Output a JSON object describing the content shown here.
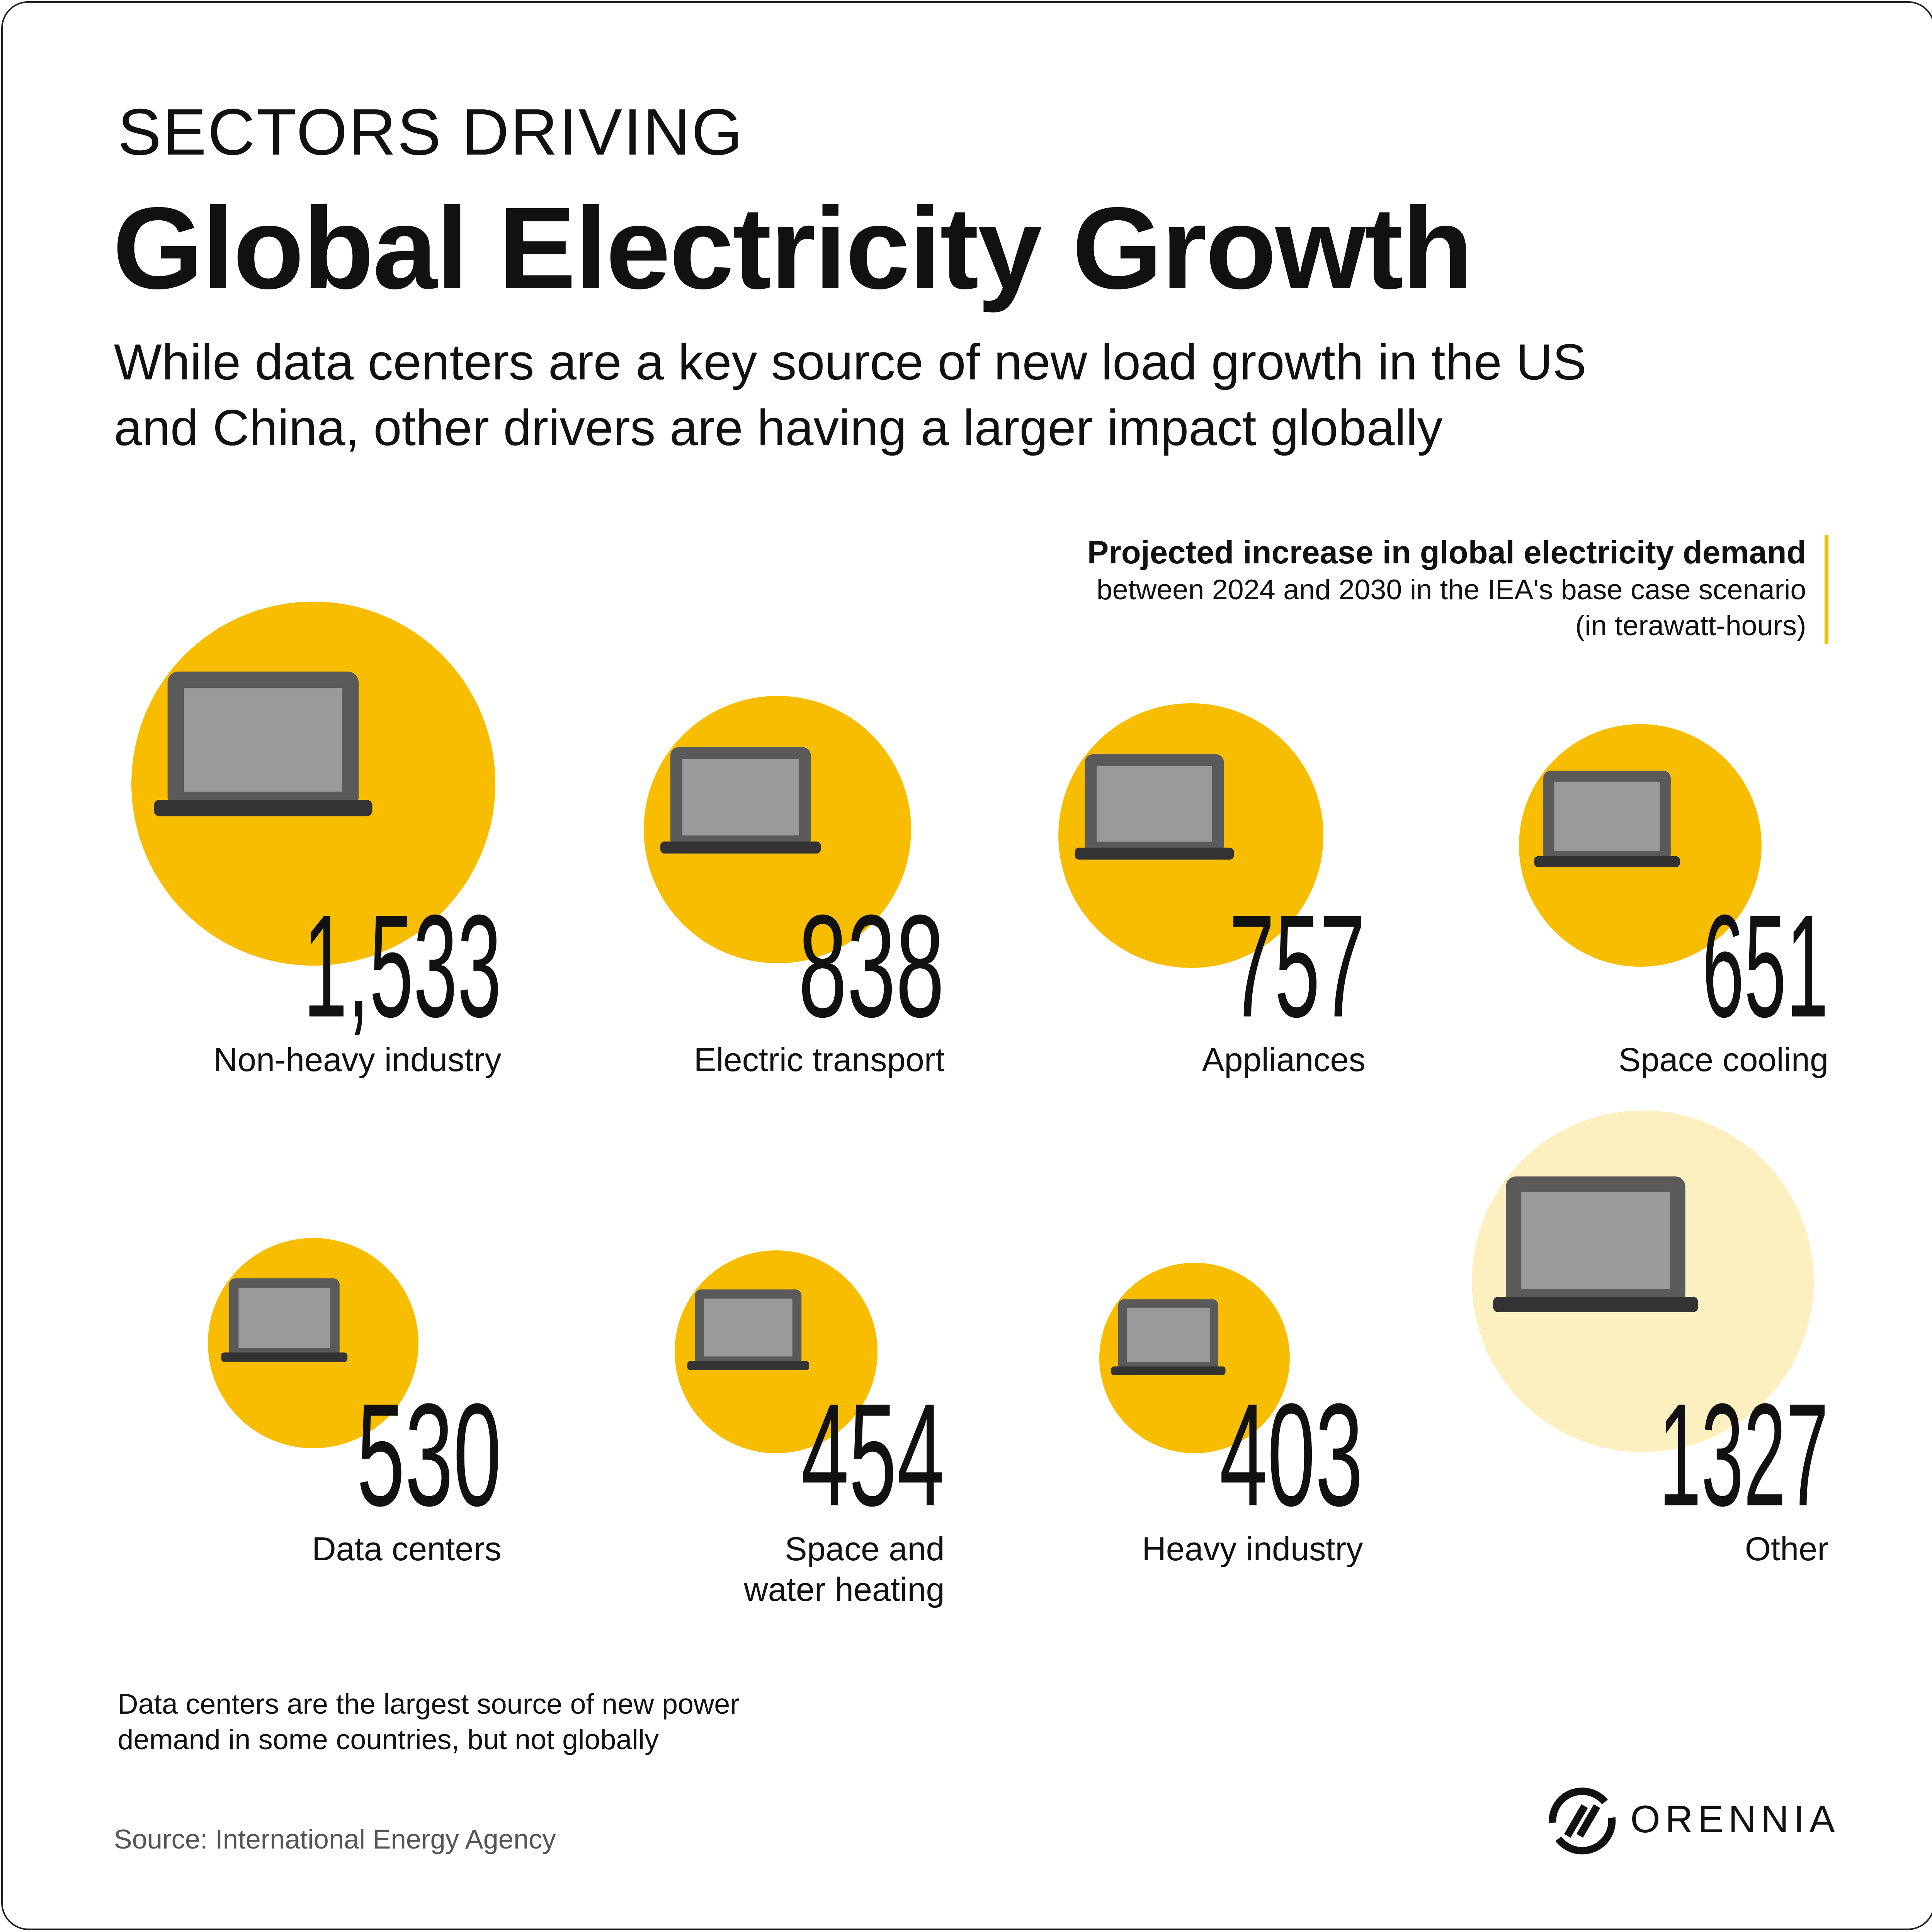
{
  "header": {
    "kicker": "SECTORS DRIVING",
    "title": "Global Electricity Growth",
    "subtitle": "While data centers are a key source of new load growth in the US and China, other drivers are having a larger impact globally"
  },
  "legend": {
    "title": "Projected increase in global electricity demand",
    "line1": "between 2024 and 2030 in the IEA's base case scenario",
    "line2": "(in terawatt-hours)",
    "accent_color": "#f9bd00"
  },
  "chart_data": {
    "type": "bubble",
    "unit": "terawatt-hours",
    "categories": [
      "Non-heavy industry",
      "Electric transport",
      "Appliances",
      "Space cooling",
      "Data centers",
      "Space and water heating",
      "Heavy industry",
      "Other"
    ],
    "values": [
      1533,
      838,
      757,
      651,
      530,
      454,
      403,
      1327
    ],
    "display_values": [
      "1,533",
      "838",
      "757",
      "651",
      "530",
      "454",
      "403",
      "1327"
    ],
    "colors": {
      "primary": "#f9bd00",
      "other": "#fdf0c0"
    }
  },
  "footer": {
    "note": "Data centers are the largest source of new power demand in some countries, but not globally",
    "source": "Source: International Energy Agency",
    "brand": "ORENNIA"
  }
}
